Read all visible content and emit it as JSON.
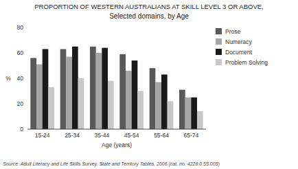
{
  "chart_data": {
    "type": "bar",
    "title": "PROPORTION OF WESTERN AUSTRALIANS AT SKILL LEVEL 3 OR ABOVE,",
    "subtitle": "Selected domains, by Age",
    "xlabel": "Age (years)",
    "ylabel": "%",
    "source": "Source: Adult Literacy and Life Skills Survey, State and Territory Tables, 2006 (cat.  no.  4228.0.55.005)",
    "categories": [
      "15-24",
      "25-34",
      "35-44",
      "45-54",
      "55-64",
      "65-74"
    ],
    "series": [
      {
        "name": "Prose",
        "color": "#595959",
        "values": [
          56,
          63,
          65,
          59,
          48,
          31
        ]
      },
      {
        "name": "Numeracy",
        "color": "#a6a6a6",
        "values": [
          51,
          57,
          60,
          46,
          37,
          25
        ]
      },
      {
        "name": "Document",
        "color": "#1a1a1a",
        "values": [
          63,
          65,
          64,
          54,
          43,
          25
        ]
      },
      {
        "name": "Problem Solving",
        "color": "#c8c8c8",
        "values": [
          33,
          40,
          38,
          30,
          22,
          14
        ]
      }
    ],
    "ylim": [
      0,
      80
    ],
    "yticks": [
      0,
      20,
      40,
      60,
      80
    ],
    "grid": false,
    "legend": "right"
  }
}
